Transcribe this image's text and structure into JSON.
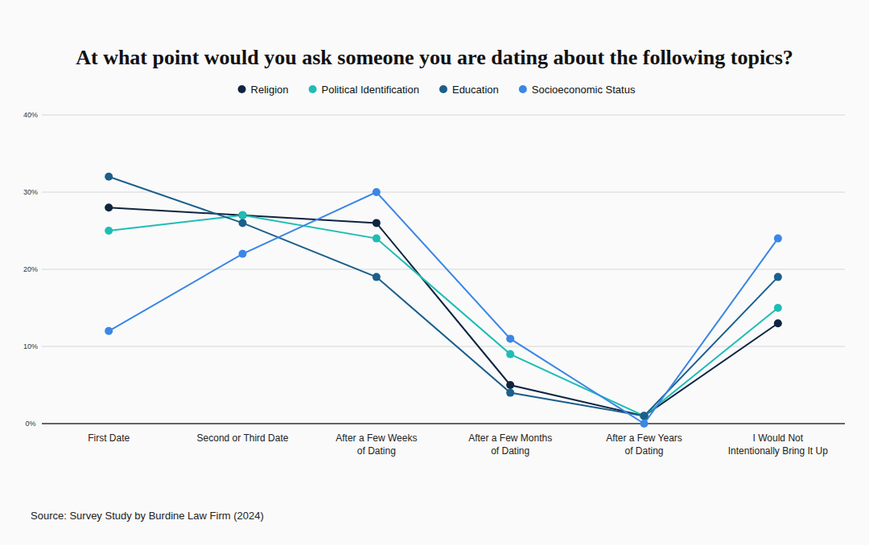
{
  "chart_data": {
    "type": "line",
    "title": "At what point would you ask someone you are dating about the following topics?",
    "source": "Source: Survey Study by Burdine Law Firm (2024)",
    "categories": [
      "First Date",
      "Second or Third Date",
      "After a Few Weeks\nof Dating",
      "After a Few Months\nof Dating",
      "After a Few Years\nof Dating",
      "I Would Not\nIntentionally Bring It Up"
    ],
    "series": [
      {
        "name": "Religion",
        "color": "#0f2440",
        "values": [
          28,
          27,
          26,
          5,
          1,
          13
        ]
      },
      {
        "name": "Political Identification",
        "color": "#1fbdb4",
        "values": [
          25,
          27,
          24,
          9,
          1,
          15
        ]
      },
      {
        "name": "Education",
        "color": "#1b5f8c",
        "values": [
          32,
          26,
          19,
          4,
          1,
          19
        ]
      },
      {
        "name": "Socioeconomic Status",
        "color": "#3b86e6",
        "values": [
          12,
          22,
          30,
          11,
          0,
          24
        ]
      }
    ],
    "ylim": [
      0,
      40
    ],
    "yticks": [
      {
        "value": 0,
        "label": "0%"
      },
      {
        "value": 10,
        "label": "10%"
      },
      {
        "value": 20,
        "label": "20%"
      },
      {
        "value": 30,
        "label": "30%"
      },
      {
        "value": 40,
        "label": "40%"
      }
    ],
    "grid": true,
    "legend": "top",
    "marker": "circle"
  }
}
